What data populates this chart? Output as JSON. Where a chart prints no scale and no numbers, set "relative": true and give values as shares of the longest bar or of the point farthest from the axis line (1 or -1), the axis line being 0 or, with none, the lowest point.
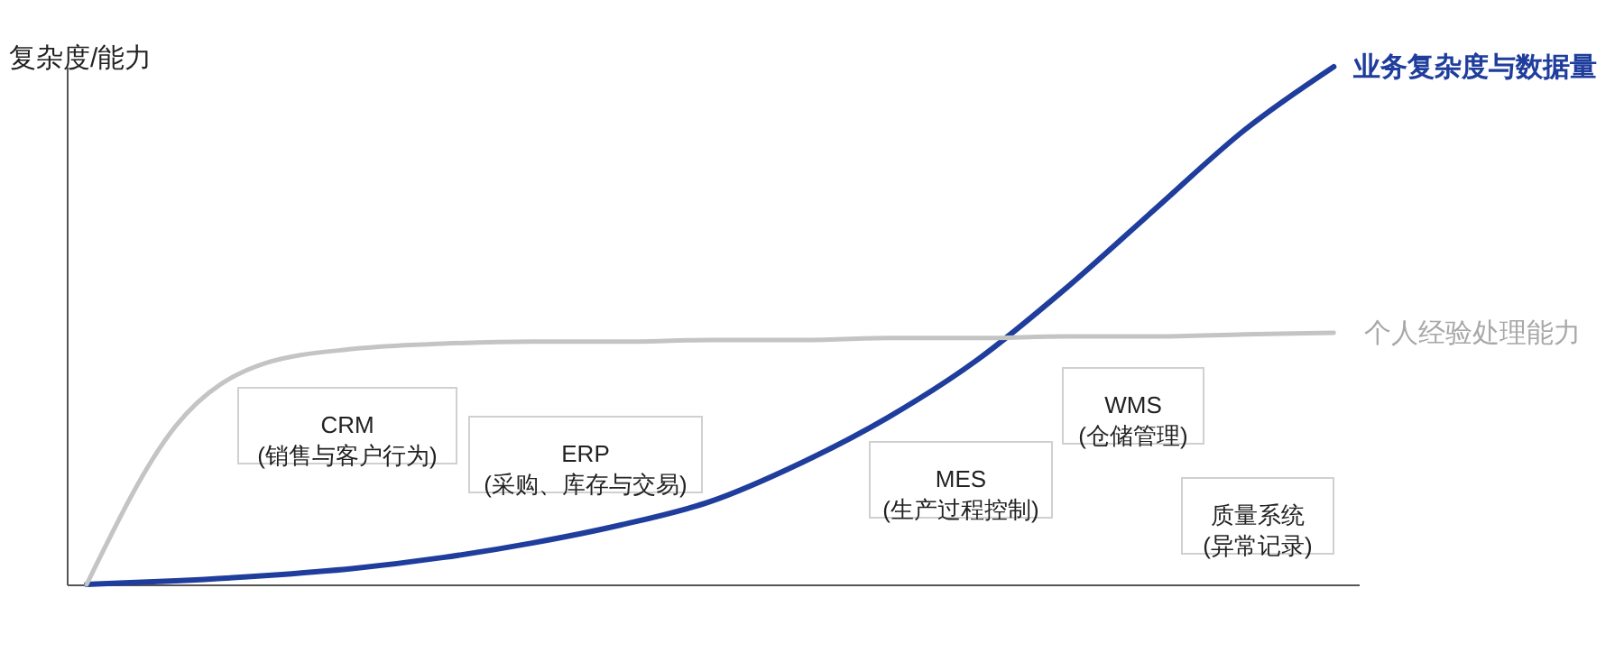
{
  "chart_data": {
    "type": "line",
    "relative": true,
    "ylabel": "复杂度/能力",
    "categories": [
      null,
      null,
      null,
      null,
      null,
      null,
      null,
      null,
      null,
      null,
      null,
      null,
      null,
      null,
      null
    ],
    "series": [
      {
        "name": "业务复杂度与数据量",
        "color": "#1f3d9c",
        "values": [
          0,
          0.007,
          0.017,
          0.031,
          0.052,
          0.08,
          0.115,
          0.16,
          0.233,
          0.323,
          0.434,
          0.573,
          0.726,
          0.878,
          1.0
        ]
      },
      {
        "name": "个人经验处理能力",
        "color": "#c4c4c4",
        "values": [
          0,
          0.306,
          0.427,
          0.455,
          0.465,
          0.469,
          0.469,
          0.472,
          0.472,
          0.476,
          0.476,
          0.479,
          0.479,
          0.483,
          0.486
        ]
      }
    ],
    "annotations": [
      "CRM\n(销售与客户行为)",
      "ERP\n(采购、库存与交易)",
      "MES\n(生产过程控制)",
      "WMS\n(仓储管理)",
      "质量系统\n(异常记录)"
    ],
    "legend": false,
    "grid": false,
    "line_style": "solid"
  }
}
